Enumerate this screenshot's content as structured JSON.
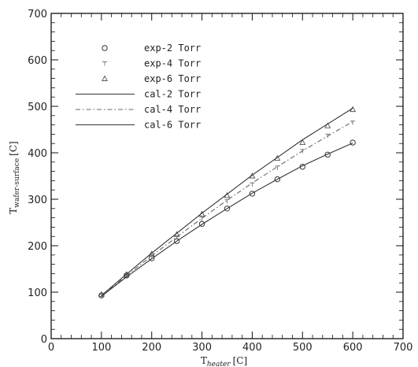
{
  "chart_data": {
    "type": "line",
    "title": "",
    "xlabel": {
      "main": "T",
      "sub": "heater",
      "unit": "[C]"
    },
    "ylabel": {
      "main": "T",
      "sub": "wafer-surface",
      "unit": "[C]"
    },
    "xlim": [
      0,
      700
    ],
    "ylim": [
      0,
      700
    ],
    "xticks": [
      0,
      100,
      200,
      300,
      400,
      500,
      600,
      700
    ],
    "yticks": [
      0,
      100,
      200,
      300,
      400,
      500,
      600,
      700
    ],
    "grid": false,
    "legend_position": "top-left",
    "x": [
      100,
      150,
      200,
      250,
      300,
      350,
      400,
      450,
      500,
      550,
      600
    ],
    "series": [
      {
        "name": "exp-2 Torr",
        "kind": "markers",
        "marker": "circle",
        "values": [
          93,
          136,
          173,
          210,
          247,
          280,
          312,
          343,
          370,
          396,
          422
        ]
      },
      {
        "name": "exp-4 Torr",
        "kind": "markers",
        "marker": "tick",
        "values": [
          94,
          137,
          177,
          218,
          258,
          296,
          332,
          368,
          404,
          437,
          465
        ]
      },
      {
        "name": "exp-6 Torr",
        "kind": "markers",
        "marker": "triangle",
        "values": [
          95,
          138,
          182,
          224,
          268,
          308,
          350,
          388,
          422,
          458,
          493
        ]
      },
      {
        "name": "cal-2 Torr",
        "kind": "line",
        "dash": "solid",
        "values": [
          91,
          133,
          172,
          210,
          246,
          280,
          313,
          343,
          372,
          397,
          421
        ]
      },
      {
        "name": "cal-4 Torr",
        "kind": "line",
        "dash": "dashdot",
        "values": [
          92,
          136,
          178,
          219,
          259,
          298,
          335,
          370,
          404,
          436,
          467
        ]
      },
      {
        "name": "cal-6 Torr",
        "kind": "line",
        "dash": "solid",
        "values": [
          93,
          139,
          184,
          227,
          270,
          311,
          352,
          390,
          428,
          462,
          496
        ]
      }
    ]
  }
}
